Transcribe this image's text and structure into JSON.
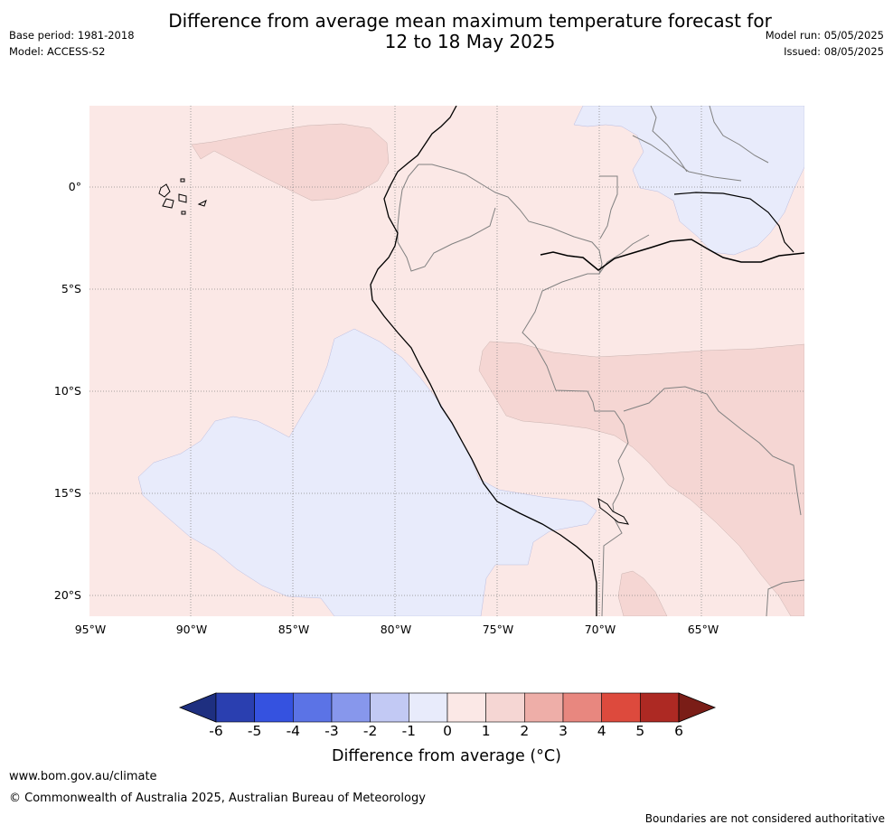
{
  "header": {
    "title_line1": "Difference from average mean maximum temperature forecast for",
    "title_line2": "12 to 18 May 2025",
    "base_period": "Base period: 1981-2018",
    "model": "Model: ACCESS-S2",
    "model_run": "Model run: 05/05/2025",
    "issued": "Issued: 08/05/2025"
  },
  "map": {
    "lat_labels": [
      "0°",
      "5°S",
      "10°S",
      "15°S",
      "20°S"
    ],
    "lon_labels": [
      "95°W",
      "90°W",
      "85°W",
      "80°W",
      "75°W",
      "70°W",
      "65°W"
    ],
    "colors": {
      "warm_0_1": "#fbe8e6",
      "warm_1_2": "#f5d6d3",
      "cool_0_1": "#e8ebfb",
      "coast": "#000000",
      "border": "#808080",
      "grid": "#888888"
    }
  },
  "colorbar": {
    "ticks": [
      "-6",
      "-5",
      "-4",
      "-3",
      "-2",
      "-1",
      "0",
      "1",
      "2",
      "3",
      "4",
      "5",
      "6"
    ],
    "colors": [
      "#1e2f80",
      "#2a3fb0",
      "#3552e0",
      "#5b73e6",
      "#8797ec",
      "#c2c9f4",
      "#e8ebfb",
      "#fbe8e6",
      "#f5d6d3",
      "#eeaea8",
      "#e8877f",
      "#dd4a3d",
      "#ad2923",
      "#7a1d17"
    ],
    "label": "Difference from average (°C)"
  },
  "footer": {
    "website": "www.bom.gov.au/climate",
    "copyright": "© Commonwealth of Australia 2025, Australian Bureau of Meteorology",
    "disclaimer": "Boundaries are not considered authoritative"
  }
}
